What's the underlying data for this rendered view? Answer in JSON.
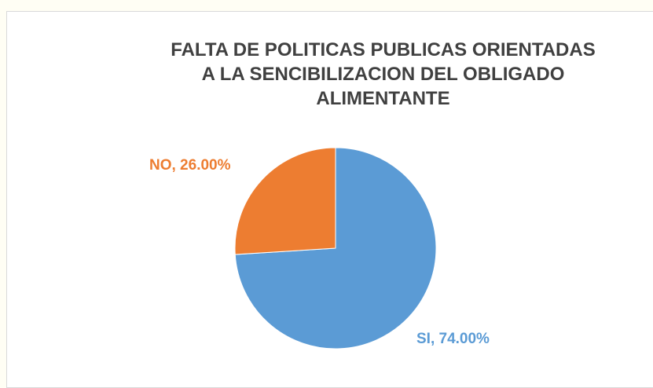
{
  "chart_data": {
    "type": "pie",
    "title": "FALTA DE POLITICAS PUBLICAS ORIENTADAS\nA LA SENCIBILIZACION DEL OBLIGADO\nALIMENTANTE",
    "values": [
      74,
      26
    ],
    "value_labels": [
      "SI, 74.00%",
      "NO, 26.00%"
    ],
    "colors": [
      "#5b9bd5",
      "#ed7d31"
    ]
  }
}
